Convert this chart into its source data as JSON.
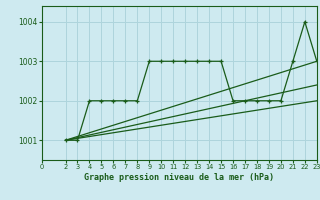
{
  "background_color": "#ceeaf0",
  "grid_color": "#aed4dc",
  "line_color": "#1a5c1a",
  "title": "Graphe pression niveau de la mer (hPa)",
  "xmin": 0,
  "xmax": 23,
  "ymin": 1000.5,
  "ymax": 1004.4,
  "yticks": [
    1001,
    1002,
    1003,
    1004
  ],
  "xticks": [
    0,
    2,
    3,
    4,
    5,
    6,
    7,
    8,
    9,
    10,
    11,
    12,
    13,
    14,
    15,
    16,
    17,
    18,
    19,
    20,
    21,
    22,
    23
  ],
  "main_x": [
    2,
    3,
    4,
    5,
    6,
    7,
    8,
    9,
    10,
    11,
    12,
    13,
    14,
    15,
    16,
    17,
    18,
    19,
    20,
    21,
    22,
    23
  ],
  "main_y": [
    1001.0,
    1001.0,
    1002.0,
    1002.0,
    1002.0,
    1002.0,
    1002.0,
    1003.0,
    1003.0,
    1003.0,
    1003.0,
    1003.0,
    1003.0,
    1003.0,
    1002.0,
    1002.0,
    1002.0,
    1002.0,
    1002.0,
    1003.0,
    1004.0,
    1003.0
  ],
  "trend1_x": [
    2,
    23
  ],
  "trend1_y": [
    1001.0,
    1002.0
  ],
  "trend2_x": [
    2,
    23
  ],
  "trend2_y": [
    1001.0,
    1002.4
  ],
  "trend3_x": [
    2,
    23
  ],
  "trend3_y": [
    1001.0,
    1003.0
  ]
}
